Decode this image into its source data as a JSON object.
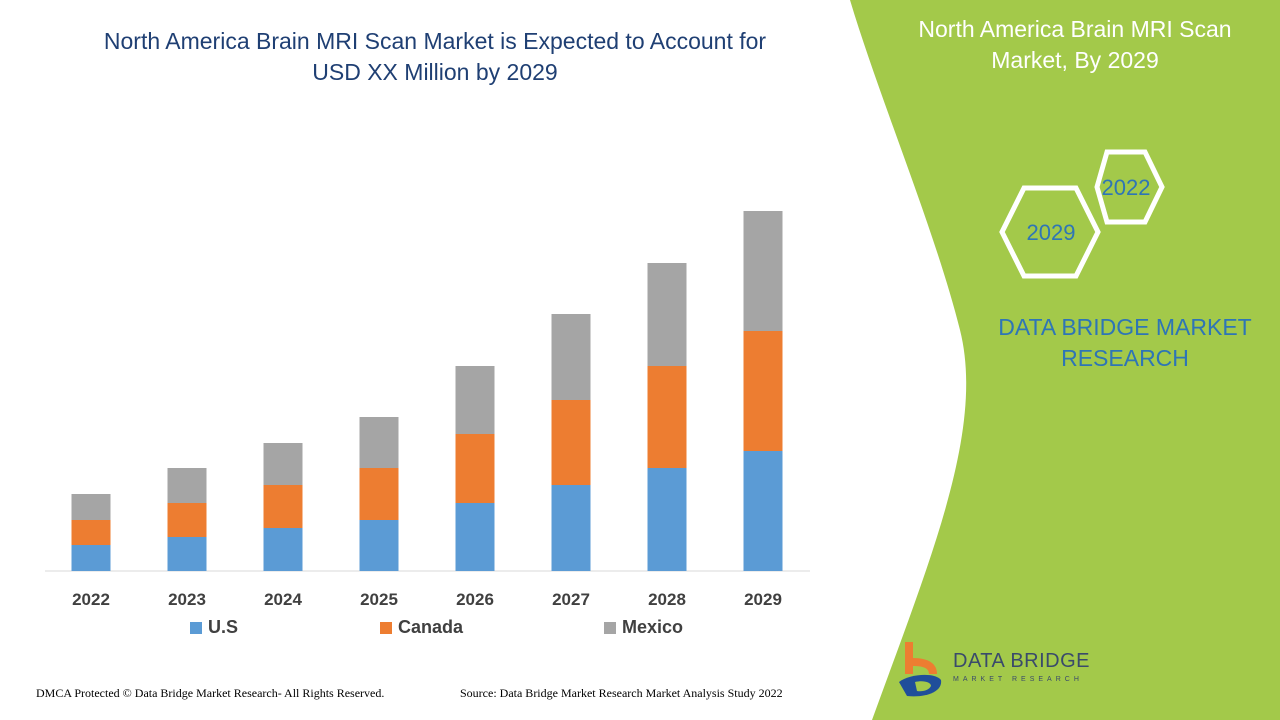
{
  "title": "North America Brain MRI Scan Market is Expected to Account for USD XX Million by 2029",
  "side_panel": {
    "title": "North America Brain MRI Scan Market, By 2029",
    "hex_year_1": "2022",
    "hex_year_2": "2029",
    "brand_text": "DATA BRIDGE MARKET RESEARCH",
    "logo_text": "DATA BRIDGE",
    "logo_subtext": "MARKET RESEARCH",
    "color": "#a3c94a"
  },
  "footer": {
    "left": "DMCA Protected © Data Bridge Market Research- All Rights Reserved.",
    "right": "Source: Data Bridge Market Research Market Analysis Study 2022"
  },
  "chart_data": {
    "type": "bar",
    "stacked": true,
    "title": "North America Brain MRI Scan Market is Expected to Account for USD XX Million by 2029",
    "categories": [
      "2022",
      "2023",
      "2024",
      "2025",
      "2026",
      "2027",
      "2028",
      "2029"
    ],
    "series": [
      {
        "name": "U.S",
        "color": "#5b9bd5",
        "values": [
          26,
          34,
          43,
          51,
          68,
          86,
          103,
          120
        ]
      },
      {
        "name": "Canada",
        "color": "#ed7d31",
        "values": [
          25,
          34,
          43,
          52,
          69,
          85,
          102,
          120
        ]
      },
      {
        "name": "Mexico",
        "color": "#a5a5a5",
        "values": [
          26,
          35,
          42,
          51,
          68,
          86,
          103,
          120
        ]
      }
    ],
    "ylim": [
      0,
      360
    ],
    "grid": false,
    "y_axis_shown": false,
    "legend_position": "bottom"
  }
}
